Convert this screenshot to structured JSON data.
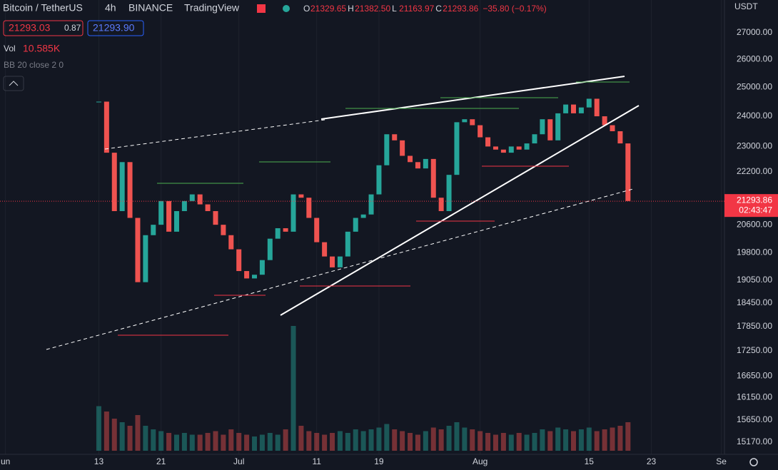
{
  "header": {
    "symbol": "Bitcoin / TetherUS",
    "interval": "4h",
    "exchange": "BINANCE",
    "source": "TradingView",
    "ohlc": [
      {
        "key": "O",
        "value": "21329.65"
      },
      {
        "key": "H",
        "value": "21382.50"
      },
      {
        "key": "L",
        "value": "21163.97"
      },
      {
        "key": "C",
        "value": "21293.86"
      }
    ],
    "change": "−35.80 (−0.17%)",
    "bid": "21293.03",
    "spread": "0.87",
    "ask": "21293.90",
    "volume_label": "Vol",
    "volume_value": "10.585K",
    "indicator": "BB 20 close 2 0",
    "currency": "USDT"
  },
  "price_label": {
    "price": 21293.86,
    "text": "21293.86",
    "countdown": "02:43:47"
  },
  "chart_data": {
    "type": "candlestick",
    "log": true,
    "x": [
      13,
      14,
      15,
      16,
      17,
      18,
      19,
      20,
      21,
      22,
      23,
      24,
      25,
      26,
      27,
      28,
      29,
      30,
      31,
      32,
      33,
      34,
      35,
      36,
      37,
      38,
      39,
      40,
      41,
      42,
      43,
      44,
      45,
      46,
      47,
      48,
      49,
      50,
      51,
      52,
      53,
      54,
      55,
      56,
      57,
      58,
      59,
      60,
      61,
      62,
      63,
      64,
      65,
      66,
      67,
      68,
      69,
      70,
      71,
      72,
      73,
      74,
      75,
      76,
      77,
      78,
      79,
      80,
      81
    ],
    "close": [
      24500,
      22800,
      21000,
      22500,
      20800,
      19000,
      20300,
      20600,
      21300,
      20400,
      21000,
      21300,
      21500,
      21200,
      21000,
      20600,
      20300,
      19900,
      19300,
      19100,
      19200,
      19600,
      20200,
      20500,
      20400,
      21500,
      21400,
      20800,
      20100,
      19700,
      19400,
      19700,
      20400,
      20800,
      20900,
      21500,
      22400,
      23400,
      23200,
      22700,
      22500,
      22300,
      22600,
      21400,
      21000,
      22100,
      23800,
      23900,
      23700,
      23300,
      23000,
      22900,
      22800,
      23000,
      22900,
      23100,
      23400,
      23900,
      23200,
      24100,
      24400,
      24100,
      24300,
      24600,
      24000,
      23700,
      23500,
      23100,
      21300
    ],
    "volume": [
      25,
      22,
      18,
      16,
      14,
      20,
      14,
      12,
      11,
      10,
      9,
      10,
      9,
      9,
      10,
      11,
      9,
      12,
      10,
      9,
      8,
      9,
      10,
      9,
      12,
      70,
      14,
      11,
      10,
      9,
      10,
      11,
      10,
      12,
      11,
      12,
      13,
      15,
      12,
      11,
      10,
      9,
      11,
      13,
      12,
      14,
      16,
      13,
      12,
      11,
      10,
      9,
      10,
      9,
      10,
      9,
      10,
      12,
      11,
      13,
      12,
      11,
      12,
      13,
      11,
      12,
      13,
      14,
      16
    ],
    "up_color": "#26a69a",
    "down_color": "#ef5350",
    "xlim": [
      0.3,
      93.4
    ],
    "xticks": [
      {
        "value": 1,
        "label": "un"
      },
      13,
      21,
      {
        "value": 31,
        "label": "Jul"
      },
      {
        "value": 41,
        "label": "11"
      },
      {
        "value": 49,
        "label": "19"
      },
      {
        "value": 62,
        "label": "Aug"
      },
      {
        "value": 76,
        "label": "15"
      },
      {
        "value": 84,
        "label": "23"
      },
      {
        "value": 93,
        "label": "Se"
      }
    ],
    "ylim": [
      14910,
      28270
    ],
    "yticks": [
      {
        "value": 27000,
        "label": "27000.00"
      },
      {
        "value": 26000,
        "label": "26000.00"
      },
      {
        "value": 25000,
        "label": "25000.00"
      },
      {
        "value": 24000,
        "label": "24000.00"
      },
      {
        "value": 23000,
        "label": "23000.00"
      },
      {
        "value": 22200,
        "label": "22200.00"
      },
      {
        "value": 20600,
        "label": "20600.00"
      },
      {
        "value": 19800,
        "label": "19800.00"
      },
      {
        "value": 19050,
        "label": "19050.00"
      },
      {
        "value": 18450,
        "label": "18450.00"
      },
      {
        "value": 17850,
        "label": "17850.00"
      },
      {
        "value": 17250,
        "label": "17250.00"
      },
      {
        "value": 16650,
        "label": "16650.00"
      },
      {
        "value": 16150,
        "label": "16150.00"
      },
      {
        "value": 15650,
        "label": "15650.00"
      },
      {
        "value": 15170,
        "label": "15170.00"
      }
    ],
    "grid": true
  }
}
